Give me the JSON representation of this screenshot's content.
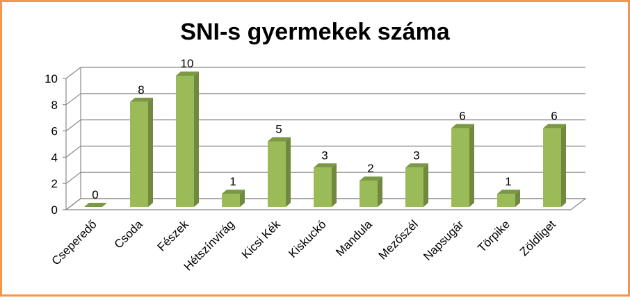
{
  "chart_data": {
    "type": "bar",
    "title": "SNI-s gyermekek száma",
    "categories": [
      "Cseperedő",
      "Csoda",
      "Fészek",
      "Hétszínvirág",
      "Kicsi Kék",
      "Kiskuckó",
      "Mandula",
      "Mezőszél",
      "Napsugár",
      "Törpike",
      "Zöldliget"
    ],
    "values": [
      0,
      8,
      10,
      1,
      5,
      3,
      2,
      3,
      6,
      1,
      6
    ],
    "data_labels": [
      "0",
      "8",
      "10",
      "1",
      "5",
      "3",
      "2",
      "3",
      "6",
      "1",
      "6"
    ],
    "ylim": [
      0,
      10
    ],
    "yticks": [
      "0",
      "2",
      "4",
      "6",
      "8",
      "10"
    ],
    "grid": true,
    "legend": "none",
    "style": "3d-column",
    "xlabel": "",
    "ylabel": ""
  },
  "colors": {
    "bar_front": "#9bbb59",
    "bar_side": "#71893f",
    "bar_top": "#7b9845",
    "border": "#f79646",
    "grid": "#888888"
  }
}
